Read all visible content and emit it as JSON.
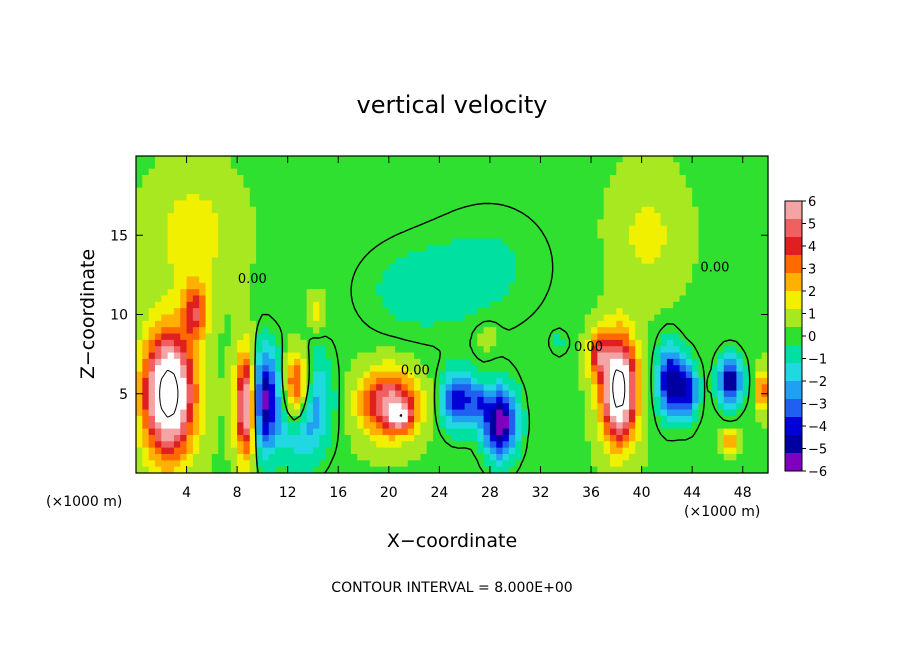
{
  "chart_data": {
    "type": "heatmap",
    "title": "vertical velocity",
    "xlabel": "X−coordinate",
    "ylabel": "Z−coordinate",
    "x_unit_left": "(×1000 m)",
    "x_unit_right": "(×1000 m)",
    "xlim": [
      0,
      50
    ],
    "ylim": [
      0,
      20
    ],
    "x_ticks": [
      4,
      8,
      12,
      16,
      20,
      24,
      28,
      32,
      36,
      40,
      44,
      48
    ],
    "y_ticks": [
      5,
      10,
      15
    ],
    "footer": "CONTOUR INTERVAL = 8.000E+00",
    "contour_labels": [
      {
        "text": "0.00",
        "x": 9.2,
        "z": 12.0
      },
      {
        "text": "0.00",
        "x": 22.1,
        "z": 6.2
      },
      {
        "text": "0.00",
        "x": 35.8,
        "z": 7.7
      },
      {
        "text": "0.00",
        "x": 45.8,
        "z": 12.7
      }
    ],
    "colorbar": {
      "levels": [
        6,
        5,
        4,
        3,
        2,
        1,
        0,
        -1,
        -2,
        -3,
        -4,
        -5,
        -6
      ],
      "labels": [
        "6",
        "5",
        "4",
        "3",
        "2",
        "1",
        "0",
        "−1",
        "−2",
        "−3",
        "−4",
        "−5",
        "−6"
      ],
      "colors": [
        "#f4a4a4",
        "#f06060",
        "#e02020",
        "#ff6a00",
        "#ffb000",
        "#f0f000",
        "#a8e820",
        "#30e030",
        "#00e0a0",
        "#20d8e0",
        "#20a0f0",
        "#2060f0",
        "#0000d8",
        "#0000a0",
        "#8000c0"
      ]
    },
    "background_value": 0.3,
    "features": [
      {
        "x": 2.6,
        "z": 5.0,
        "sx": 1.9,
        "sz": 3.8,
        "amp": 9
      },
      {
        "x": 4.7,
        "z": 10.2,
        "sx": 0.9,
        "sz": 1.8,
        "amp": 4
      },
      {
        "x": 8.8,
        "z": 4.3,
        "sx": 0.8,
        "sz": 3.2,
        "amp": 8
      },
      {
        "x": 10.0,
        "z": 4.5,
        "sx": 1.0,
        "sz": 3.2,
        "amp": -6
      },
      {
        "x": 12.7,
        "z": 5.3,
        "sx": 1.1,
        "sz": 2.4,
        "amp": 8.5
      },
      {
        "x": 13.0,
        "z": 4.5,
        "sx": 2.0,
        "sz": 3.2,
        "amp": -5.5
      },
      {
        "x": 14.3,
        "z": 10.0,
        "sx": 0.6,
        "sz": 1.1,
        "amp": 1.8
      },
      {
        "x": 20.0,
        "z": 4.4,
        "sx": 2.2,
        "sz": 2.0,
        "amp": 5.5
      },
      {
        "x": 21.0,
        "z": 3.6,
        "sx": 0.9,
        "sz": 0.8,
        "amp": 4
      },
      {
        "x": 25.5,
        "z": 4.6,
        "sx": 1.3,
        "sz": 1.8,
        "amp": -5
      },
      {
        "x": 27.2,
        "z": 4.5,
        "sx": 0.6,
        "sz": 1.0,
        "amp": -2.5
      },
      {
        "x": 28.8,
        "z": 3.2,
        "sx": 1.3,
        "sz": 2.2,
        "amp": -6.5
      },
      {
        "x": 27.8,
        "z": 8.6,
        "sx": 0.8,
        "sz": 0.8,
        "amp": 1.0
      },
      {
        "x": 33.5,
        "z": 8.2,
        "sx": 0.6,
        "sz": 0.7,
        "amp": -1.2
      },
      {
        "x": 38.2,
        "z": 5.3,
        "sx": 1.3,
        "sz": 3.2,
        "amp": 9
      },
      {
        "x": 36.6,
        "z": 7.5,
        "sx": 0.8,
        "sz": 1.4,
        "amp": 4
      },
      {
        "x": 42.2,
        "z": 5.8,
        "sx": 0.9,
        "sz": 2.2,
        "amp": -5.5
      },
      {
        "x": 43.6,
        "z": 5.2,
        "sx": 0.8,
        "sz": 1.8,
        "amp": -5
      },
      {
        "x": 47.0,
        "z": 5.8,
        "sx": 0.9,
        "sz": 1.5,
        "amp": -6
      },
      {
        "x": 47.0,
        "z": 2.0,
        "sx": 0.6,
        "sz": 0.6,
        "amp": 3.5
      },
      {
        "x": 49.6,
        "z": 5.2,
        "sx": 0.4,
        "sz": 1.2,
        "amp": 4.5
      },
      {
        "x": 22.0,
        "z": 11.5,
        "sx": 4.5,
        "sz": 3.0,
        "amp": -1.0
      },
      {
        "x": 28.0,
        "z": 13.0,
        "sx": 5.0,
        "sz": 4.0,
        "amp": -0.8
      },
      {
        "x": 4.5,
        "z": 15.0,
        "sx": 3.0,
        "sz": 3.5,
        "amp": 1.5
      },
      {
        "x": 40.5,
        "z": 15.0,
        "sx": 2.5,
        "sz": 3.5,
        "amp": 1.2
      }
    ]
  }
}
